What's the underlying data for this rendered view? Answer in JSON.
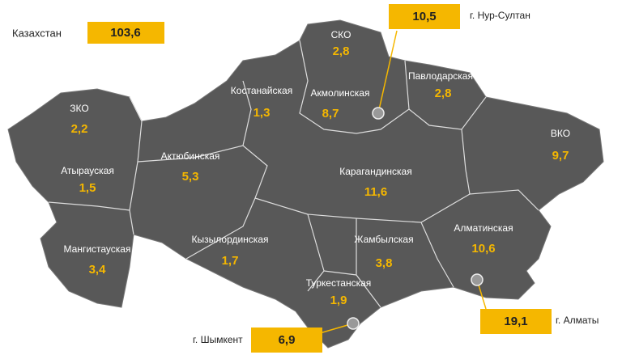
{
  "total": {
    "label": "Казахстан",
    "value": "103,6"
  },
  "regions": [
    {
      "name": "СКО",
      "value": "2,8"
    },
    {
      "name": "Костанайская",
      "value": "1,3"
    },
    {
      "name": "Акмолинская",
      "value": "8,7"
    },
    {
      "name": "Павлодарская",
      "value": "2,8"
    },
    {
      "name": "ЗКО",
      "value": "2,2"
    },
    {
      "name": "ВКО",
      "value": "9,7"
    },
    {
      "name": "Актюбинская",
      "value": "5,3"
    },
    {
      "name": "Атырауская",
      "value": "1,5"
    },
    {
      "name": "Карагандинская",
      "value": "11,6"
    },
    {
      "name": "Мангистауская",
      "value": "3,4"
    },
    {
      "name": "Кызылординская",
      "value": "1,7"
    },
    {
      "name": "Жамбылская",
      "value": "3,8"
    },
    {
      "name": "Алматинская",
      "value": "10,6"
    },
    {
      "name": "Туркестанская",
      "value": "1,9"
    }
  ],
  "cities": [
    {
      "name": "г. Нур-Султан",
      "value": "10,5"
    },
    {
      "name": "г. Алматы",
      "value": "19,1"
    },
    {
      "name": "г. Шымкент",
      "value": "6,9"
    }
  ]
}
